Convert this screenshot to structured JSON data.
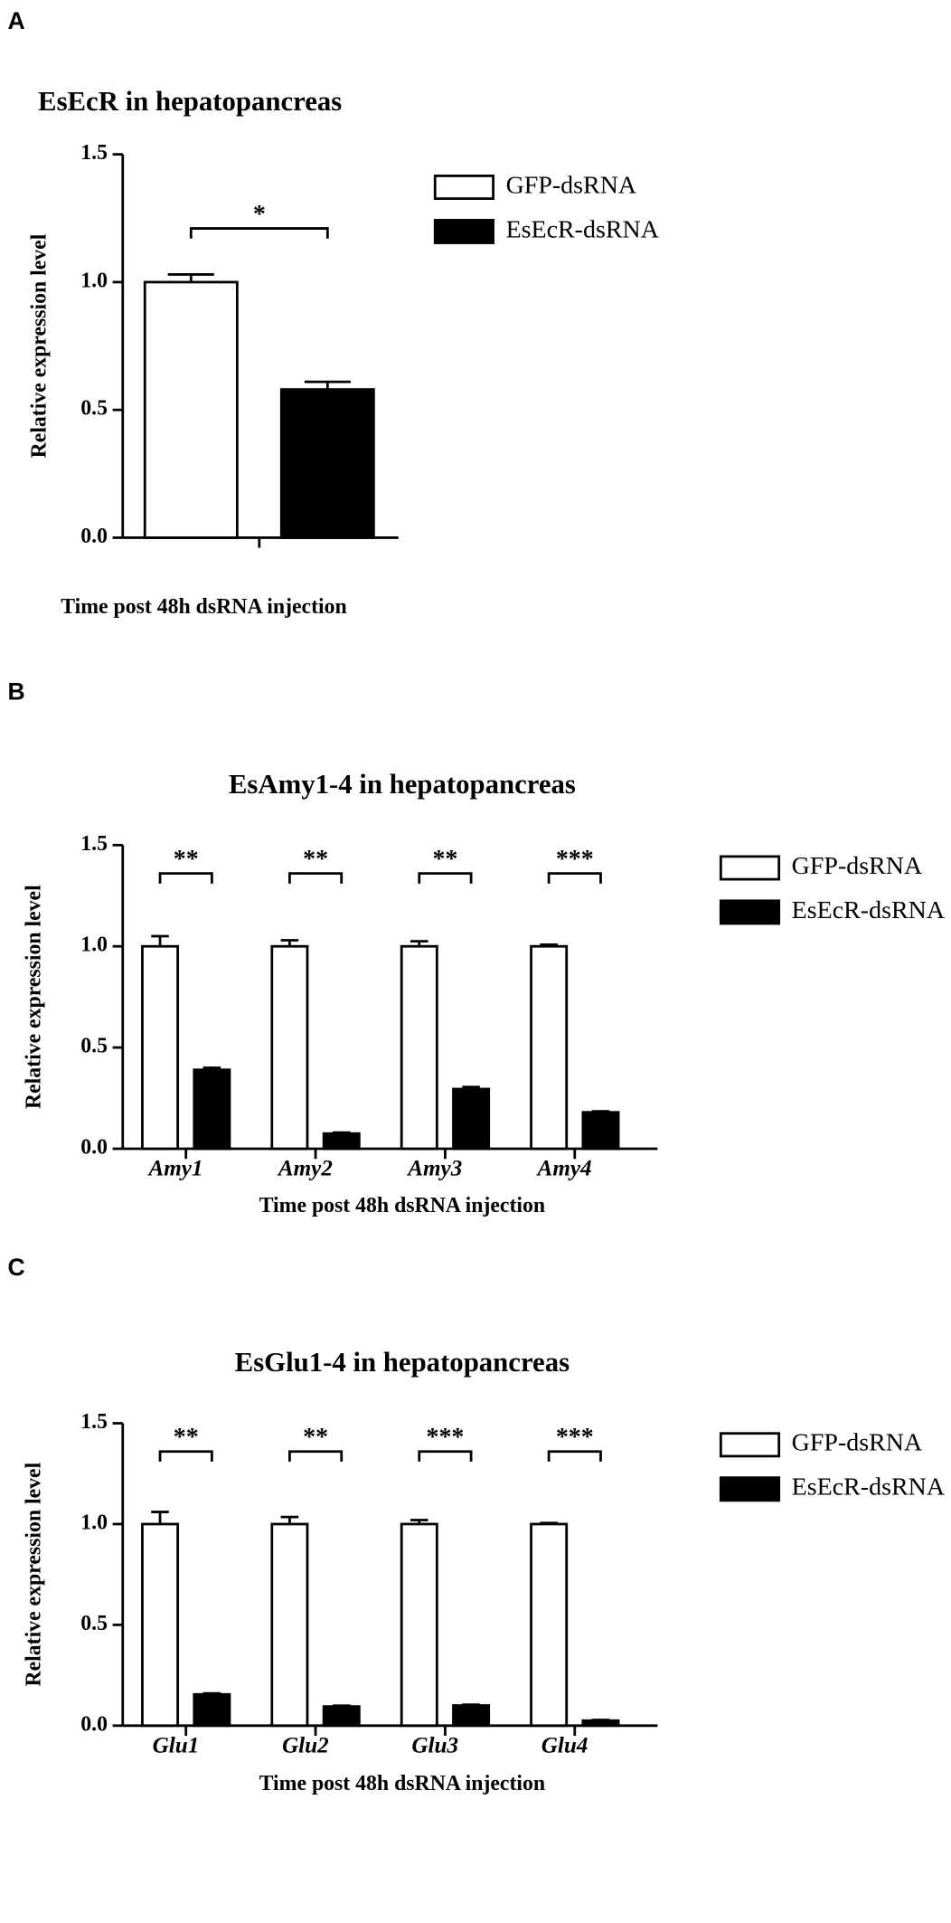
{
  "chart_data": [
    {
      "type": "bar",
      "panel": "A",
      "title": "EsEcR in hepatopancreas",
      "ylabel": "Relative expression level",
      "xlabel": "Time post 48h dsRNA injection",
      "categories": [
        null
      ],
      "series": [
        {
          "name": "GFP-dsRNA",
          "color": "#ffffff",
          "values": [
            1.0
          ],
          "errors": [
            0.03
          ]
        },
        {
          "name": "EsEcR-dsRNA",
          "color": "#000000",
          "values": [
            0.58
          ],
          "errors": [
            0.03
          ]
        }
      ],
      "significance": [
        "*"
      ],
      "ylim": [
        0,
        1.5
      ],
      "yticks": [
        {
          "value": 0,
          "label": "0.0"
        },
        0.5,
        {
          "value": 1,
          "label": "1.0"
        },
        1.5
      ],
      "legend": "right"
    },
    {
      "type": "bar",
      "panel": "B",
      "title": "EsAmy1-4 in hepatopancreas",
      "ylabel": "Relative expression level",
      "xlabel": "Time post 48h dsRNA injection",
      "categories": [
        "Amy1",
        "Amy2",
        "Amy3",
        "Amy4"
      ],
      "series": [
        {
          "name": "GFP-dsRNA",
          "color": "#ffffff",
          "values": [
            1.0,
            1.0,
            1.0,
            1.0
          ],
          "errors": [
            0.05,
            0.03,
            0.025,
            0.008
          ]
        },
        {
          "name": "EsEcR-dsRNA",
          "color": "#000000",
          "values": [
            0.39,
            0.075,
            0.295,
            0.18
          ],
          "errors": [
            0.01,
            0.005,
            0.01,
            0.005
          ]
        }
      ],
      "significance": [
        "**",
        "**",
        "**",
        "***"
      ],
      "ylim": [
        0,
        1.5
      ],
      "yticks": [
        {
          "value": 0,
          "label": "0.0"
        },
        0.5,
        {
          "value": 1,
          "label": "1.0"
        },
        1.5
      ],
      "legend": "right"
    },
    {
      "type": "bar",
      "panel": "C",
      "title": "EsGlu1-4 in hepatopancreas",
      "ylabel": "Relative expression level",
      "xlabel": "Time post 48h dsRNA injection",
      "categories": [
        "Glu1",
        "Glu2",
        "Glu3",
        "Glu4"
      ],
      "series": [
        {
          "name": "GFP-dsRNA",
          "color": "#ffffff",
          "values": [
            1.0,
            1.0,
            1.0,
            1.0
          ],
          "errors": [
            0.06,
            0.035,
            0.02,
            0.005
          ]
        },
        {
          "name": "EsEcR-dsRNA",
          "color": "#000000",
          "values": [
            0.155,
            0.095,
            0.1,
            0.025
          ],
          "errors": [
            0.005,
            0.004,
            0.004,
            0.003
          ]
        }
      ],
      "significance": [
        "**",
        "**",
        "***",
        "***"
      ],
      "ylim": [
        0,
        1.5
      ],
      "yticks": [
        {
          "value": 0,
          "label": "0.0"
        },
        0.5,
        {
          "value": 1,
          "label": "1.0"
        },
        1.5
      ],
      "legend": "right"
    }
  ]
}
